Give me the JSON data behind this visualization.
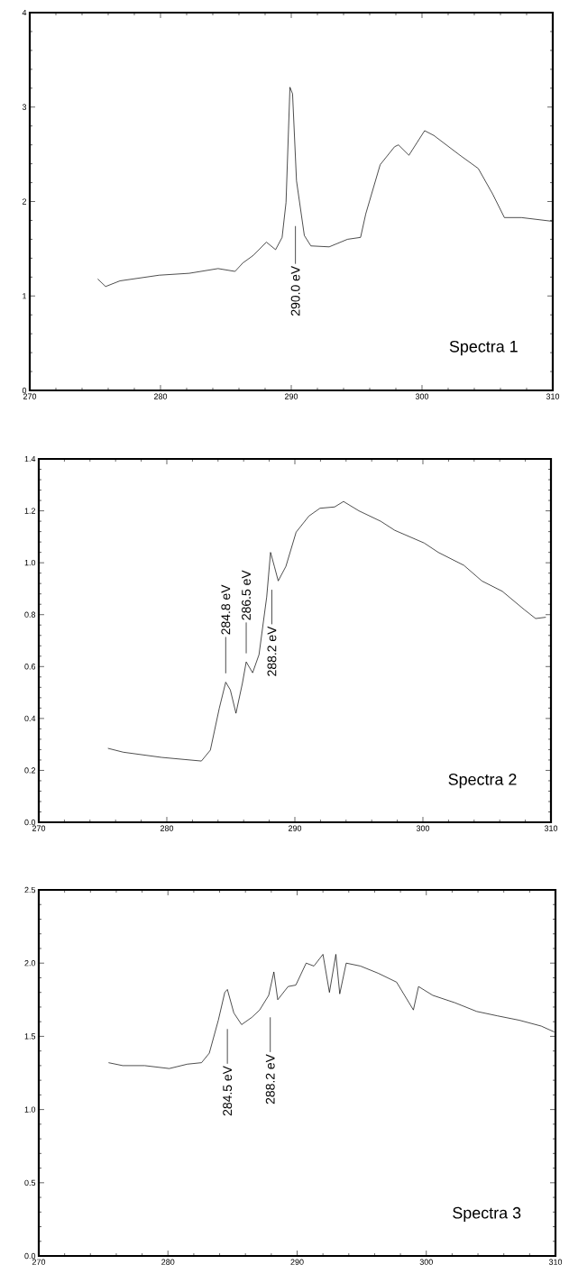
{
  "chart_data": [
    {
      "type": "line",
      "title": "Spectra 1",
      "color": "#000000",
      "x": [
        275.2,
        275.8,
        276.9,
        279.9,
        282.2,
        284.4,
        285.7,
        286.3,
        287.1,
        288.1,
        288.8,
        289.3,
        289.6,
        289.9,
        290.1,
        290.4,
        291.0,
        291.5,
        292.9,
        294.3,
        295.3,
        295.7,
        296.8,
        297.9,
        298.2,
        299.0,
        300.2,
        300.9,
        302.9,
        304.3,
        305.4,
        306.3,
        307.6,
        310.0
      ],
      "values": [
        1.18,
        1.1,
        1.16,
        1.22,
        1.24,
        1.29,
        1.26,
        1.35,
        1.43,
        1.57,
        1.49,
        1.62,
        1.99,
        3.21,
        3.14,
        2.22,
        1.64,
        1.53,
        1.52,
        1.6,
        1.62,
        1.87,
        2.39,
        2.58,
        2.6,
        2.49,
        2.75,
        2.7,
        2.49,
        2.35,
        2.08,
        1.83,
        1.83,
        1.79
      ],
      "xlim": [
        270,
        310
      ],
      "xticks": [
        270,
        280,
        290,
        300,
        310
      ],
      "ylim": [
        0,
        4
      ],
      "yticks": [
        0,
        1,
        2,
        3,
        4
      ],
      "annotations": [
        "290.0 eV"
      ]
    },
    {
      "type": "line",
      "title": "Spectra 2",
      "color": "#000000",
      "x": [
        275.4,
        276.6,
        279.6,
        282.7,
        283.4,
        284.1,
        284.6,
        284.96,
        285.4,
        285.9,
        286.2,
        286.7,
        287.2,
        287.8,
        288.1,
        288.4,
        288.7,
        289.3,
        290.1,
        291.1,
        291.96,
        293.1,
        293.8,
        295.0,
        296.7,
        297.8,
        300.1,
        301.2,
        303.2,
        304.6,
        306.2,
        307.9,
        308.8,
        309.6
      ],
      "values": [
        0.285,
        0.27,
        0.25,
        0.236,
        0.278,
        0.44,
        0.54,
        0.51,
        0.42,
        0.535,
        0.618,
        0.576,
        0.646,
        0.868,
        1.04,
        0.986,
        0.93,
        0.986,
        1.118,
        1.18,
        1.21,
        1.215,
        1.236,
        1.2,
        1.16,
        1.125,
        1.076,
        1.04,
        0.99,
        0.93,
        0.89,
        0.82,
        0.785,
        0.79
      ],
      "xlim": [
        270,
        310
      ],
      "xticks": [
        270,
        280,
        290,
        300,
        310
      ],
      "ylim": [
        0,
        1.4
      ],
      "yticks": [
        {
          "value": 0,
          "label": "0.0"
        },
        {
          "value": 0.2,
          "label": "0.2"
        },
        {
          "value": 0.4,
          "label": "0.4"
        },
        {
          "value": 0.6,
          "label": "0.6"
        },
        {
          "value": 0.8,
          "label": "0.8"
        },
        {
          "value": 1.0,
          "label": "1.0"
        },
        {
          "value": 1.2,
          "label": "1.2"
        },
        {
          "value": 1.4,
          "label": "1.4"
        }
      ],
      "annotations": [
        "284.8 eV",
        "286.5 eV",
        "288.2 eV"
      ]
    },
    {
      "type": "line",
      "title": "Spectra 3",
      "color": "#000000",
      "x": [
        275.4,
        276.5,
        278.2,
        280.1,
        281.5,
        282.6,
        283.2,
        283.9,
        284.4,
        284.6,
        285.1,
        285.7,
        286.5,
        287.1,
        287.8,
        288.2,
        288.5,
        289.3,
        289.9,
        290.7,
        291.3,
        292.0,
        292.5,
        293.0,
        293.3,
        293.8,
        294.9,
        296.3,
        297.7,
        299.0,
        299.4,
        300.5,
        302.2,
        303.9,
        305.5,
        307.2,
        308.9,
        309.9
      ],
      "values": [
        1.32,
        1.3,
        1.3,
        1.28,
        1.31,
        1.32,
        1.385,
        1.61,
        1.8,
        1.82,
        1.66,
        1.58,
        1.63,
        1.68,
        1.78,
        1.94,
        1.75,
        1.84,
        1.85,
        2.0,
        1.98,
        2.06,
        1.8,
        2.06,
        1.79,
        2.0,
        1.98,
        1.93,
        1.87,
        1.68,
        1.84,
        1.78,
        1.73,
        1.67,
        1.64,
        1.61,
        1.57,
        1.53
      ],
      "xlim": [
        270,
        310
      ],
      "xticks": [
        270,
        280,
        290,
        300,
        310
      ],
      "ylim": [
        0,
        2.5
      ],
      "yticks": [
        {
          "value": 0,
          "label": "0.0"
        },
        {
          "value": 0.5,
          "label": "0.5"
        },
        {
          "value": 1.0,
          "label": "1.0"
        },
        {
          "value": 1.5,
          "label": "1.5"
        },
        {
          "value": 2.0,
          "label": "2.0"
        },
        {
          "value": 2.5,
          "label": "2.5"
        }
      ],
      "annotations": [
        "284.5 eV",
        "288.2 eV"
      ]
    }
  ]
}
